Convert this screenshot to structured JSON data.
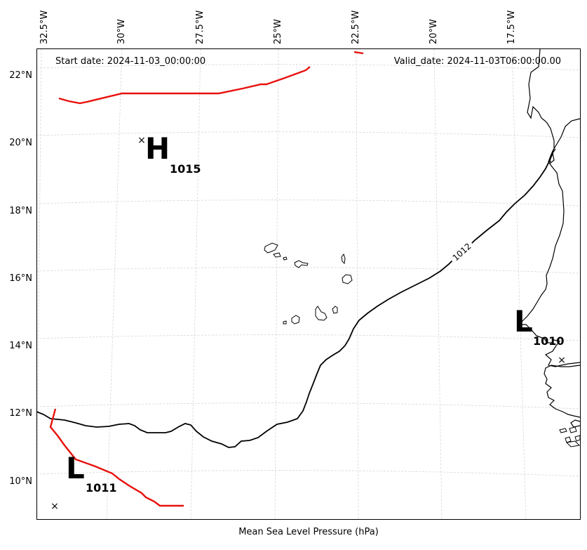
{
  "map": {
    "start_date": "Start date: 2024-11-03_00:00:00",
    "valid_date": "Valid_date: 2024-11-03T06:00:00.00",
    "footer_label": "Mean Sea Level Pressure (hPa)",
    "longitude_labels": [
      "32.5°W",
      "30°W",
      "27.5°W",
      "25°W",
      "22.5°W",
      "20°W",
      "17.5°W"
    ],
    "latitude_labels": [
      "22°N",
      "20°N",
      "18°N",
      "16°N",
      "14°N",
      "12°N",
      "10°N"
    ],
    "contour_label": "1012",
    "pressure_centers": [
      {
        "letter": "H",
        "value": "1015"
      },
      {
        "letter": "L",
        "value": "1010"
      },
      {
        "letter": "L",
        "value": "1011"
      }
    ],
    "colors": {
      "contour_high": "#e8100c",
      "contour_main": "#000000",
      "coastline": "#000000",
      "grid": "#d6d6d6"
    }
  }
}
